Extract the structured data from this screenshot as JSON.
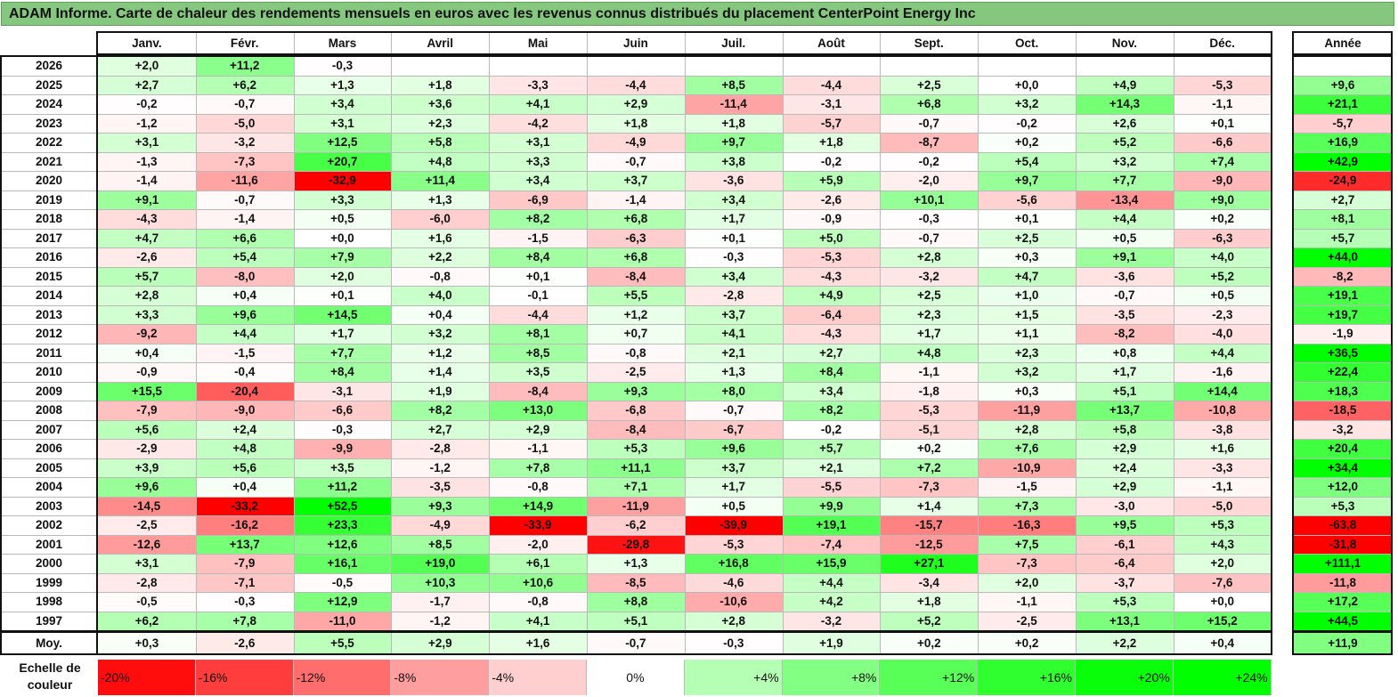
{
  "title": "ADAM Informe. Carte de chaleur des rendements mensuels en euros avec les revenus connus distribués du placement CenterPoint Energy Inc",
  "chart_data": {
    "type": "heatmap",
    "columns": [
      "Janv.",
      "Févr.",
      "Mars",
      "Avril",
      "Mai",
      "Juin",
      "Juil.",
      "Août",
      "Sept.",
      "Oct.",
      "Nov.",
      "Déc."
    ],
    "year_column_label": "Année",
    "rows": [
      {
        "label": "2026",
        "values": [
          "+2,0",
          "+11,2",
          "-0,3",
          "",
          "",
          "",
          "",
          "",
          "",
          "",
          "",
          ""
        ],
        "year": ""
      },
      {
        "label": "2025",
        "values": [
          "+2,7",
          "+6,2",
          "+1,3",
          "+1,8",
          "-3,3",
          "-4,4",
          "+8,5",
          "-4,4",
          "+2,5",
          "+0,0",
          "+4,9",
          "-5,3"
        ],
        "year": "+9,6"
      },
      {
        "label": "2024",
        "values": [
          "-0,2",
          "-0,7",
          "+3,4",
          "+3,6",
          "+4,1",
          "+2,9",
          "-11,4",
          "-3,1",
          "+6,8",
          "+3,2",
          "+14,3",
          "-1,1"
        ],
        "year": "+21,1"
      },
      {
        "label": "2023",
        "values": [
          "-1,2",
          "-5,0",
          "+3,1",
          "+2,3",
          "-4,2",
          "+1,8",
          "+1,8",
          "-5,7",
          "-0,7",
          "-0,2",
          "+2,6",
          "+0,1"
        ],
        "year": "-5,7"
      },
      {
        "label": "2022",
        "values": [
          "+3,1",
          "-3,2",
          "+12,5",
          "+5,8",
          "+3,1",
          "-4,9",
          "+9,7",
          "+1,8",
          "-8,7",
          "+0,2",
          "+5,2",
          "-6,6"
        ],
        "year": "+16,9"
      },
      {
        "label": "2021",
        "values": [
          "-1,3",
          "-7,3",
          "+20,7",
          "+4,8",
          "+3,3",
          "-0,7",
          "+3,8",
          "-0,2",
          "-0,2",
          "+5,4",
          "+3,2",
          "+7,4"
        ],
        "year": "+42,9"
      },
      {
        "label": "2020",
        "values": [
          "-1,4",
          "-11,6",
          "-32,9",
          "+11,4",
          "+3,4",
          "+3,7",
          "-3,6",
          "+5,9",
          "-2,0",
          "+9,7",
          "+7,7",
          "-9,0"
        ],
        "year": "-24,9"
      },
      {
        "label": "2019",
        "values": [
          "+9,1",
          "-0,7",
          "+3,3",
          "+1,3",
          "-6,9",
          "-1,4",
          "+3,4",
          "-2,6",
          "+10,1",
          "-5,6",
          "-13,4",
          "+9,0"
        ],
        "year": "+2,7"
      },
      {
        "label": "2018",
        "values": [
          "-4,3",
          "-1,4",
          "+0,5",
          "-6,0",
          "+8,2",
          "+6,8",
          "+1,7",
          "-0,9",
          "-0,3",
          "+0,1",
          "+4,4",
          "+0,2"
        ],
        "year": "+8,1"
      },
      {
        "label": "2017",
        "values": [
          "+4,7",
          "+6,6",
          "+0,0",
          "+1,6",
          "-1,5",
          "-6,3",
          "+0,1",
          "+5,0",
          "-0,7",
          "+2,5",
          "+0,5",
          "-6,3"
        ],
        "year": "+5,7"
      },
      {
        "label": "2016",
        "values": [
          "-2,6",
          "+5,4",
          "+7,9",
          "+2,2",
          "+8,4",
          "+6,8",
          "-0,3",
          "-5,3",
          "+2,8",
          "+0,3",
          "+9,1",
          "+4,0"
        ],
        "year": "+44,0"
      },
      {
        "label": "2015",
        "values": [
          "+5,7",
          "-8,0",
          "+2,0",
          "-0,8",
          "+0,1",
          "-8,4",
          "+3,4",
          "-4,3",
          "-3,2",
          "+4,7",
          "-3,6",
          "+5,2"
        ],
        "year": "-8,2"
      },
      {
        "label": "2014",
        "values": [
          "+2,8",
          "+0,4",
          "+0,1",
          "+4,0",
          "-0,1",
          "+5,5",
          "-2,8",
          "+4,9",
          "+2,5",
          "+1,0",
          "-0,7",
          "+0,5"
        ],
        "year": "+19,1"
      },
      {
        "label": "2013",
        "values": [
          "+3,3",
          "+9,6",
          "+14,5",
          "+0,4",
          "-4,4",
          "+1,2",
          "+3,7",
          "-6,4",
          "+2,3",
          "+1,5",
          "-3,5",
          "-2,3"
        ],
        "year": "+19,7"
      },
      {
        "label": "2012",
        "values": [
          "-9,2",
          "+4,4",
          "+1,7",
          "+3,2",
          "+8,1",
          "+0,7",
          "+4,1",
          "-4,3",
          "+1,7",
          "+1,1",
          "-8,2",
          "-4,0"
        ],
        "year": "-1,9"
      },
      {
        "label": "2011",
        "values": [
          "+0,4",
          "-1,5",
          "+7,7",
          "+1,2",
          "+8,5",
          "-0,8",
          "+2,1",
          "+2,7",
          "+4,8",
          "+2,3",
          "+0,8",
          "+4,4"
        ],
        "year": "+36,5"
      },
      {
        "label": "2010",
        "values": [
          "-0,9",
          "-0,4",
          "+8,4",
          "+1,4",
          "+3,5",
          "-2,5",
          "+1,3",
          "+8,4",
          "-1,1",
          "+3,2",
          "+1,7",
          "-1,6"
        ],
        "year": "+22,4"
      },
      {
        "label": "2009",
        "values": [
          "+15,5",
          "-20,4",
          "-3,1",
          "+1,9",
          "-8,4",
          "+9,3",
          "+8,0",
          "+3,4",
          "-1,8",
          "+0,3",
          "+5,1",
          "+14,4"
        ],
        "year": "+18,3"
      },
      {
        "label": "2008",
        "values": [
          "-7,9",
          "-9,0",
          "-6,6",
          "+8,2",
          "+13,0",
          "-6,8",
          "-0,7",
          "+8,2",
          "-5,3",
          "-11,9",
          "+13,7",
          "-10,8"
        ],
        "year": "-18,5"
      },
      {
        "label": "2007",
        "values": [
          "+5,6",
          "+2,4",
          "-0,3",
          "+2,7",
          "+2,9",
          "-8,4",
          "-6,7",
          "-0,2",
          "-5,1",
          "+2,8",
          "+5,8",
          "-3,8"
        ],
        "year": "-3,2"
      },
      {
        "label": "2006",
        "values": [
          "-2,9",
          "+4,8",
          "-9,9",
          "-2,8",
          "-1,1",
          "+5,3",
          "+9,6",
          "+5,7",
          "+0,2",
          "+7,6",
          "+2,9",
          "+1,6"
        ],
        "year": "+20,4"
      },
      {
        "label": "2005",
        "values": [
          "+3,9",
          "+5,6",
          "+3,5",
          "-1,2",
          "+7,8",
          "+11,1",
          "+3,7",
          "+2,1",
          "+7,2",
          "-10,9",
          "+2,4",
          "-3,3"
        ],
        "year": "+34,4"
      },
      {
        "label": "2004",
        "values": [
          "+9,6",
          "+0,4",
          "+11,2",
          "-3,5",
          "-0,8",
          "+7,1",
          "+1,7",
          "-5,5",
          "-7,3",
          "-1,5",
          "+2,9",
          "-1,1"
        ],
        "year": "+12,0"
      },
      {
        "label": "2003",
        "values": [
          "-14,5",
          "-33,2",
          "+52,5",
          "+9,3",
          "+14,9",
          "-11,9",
          "+0,5",
          "+9,9",
          "+1,4",
          "+7,3",
          "-3,0",
          "-5,0"
        ],
        "year": "+5,3"
      },
      {
        "label": "2002",
        "values": [
          "-2,5",
          "-16,2",
          "+23,3",
          "-4,9",
          "-33,9",
          "-6,2",
          "-39,9",
          "+19,1",
          "-15,7",
          "-16,3",
          "+9,5",
          "+5,3"
        ],
        "year": "-63,8"
      },
      {
        "label": "2001",
        "values": [
          "-12,6",
          "+13,7",
          "+12,6",
          "+8,5",
          "-2,0",
          "-29,8",
          "-5,3",
          "-7,4",
          "-12,5",
          "+7,5",
          "-6,1",
          "+4,3"
        ],
        "year": "-31,8"
      },
      {
        "label": "2000",
        "values": [
          "+3,1",
          "-7,9",
          "+16,1",
          "+19,0",
          "+6,1",
          "+1,3",
          "+16,8",
          "+15,9",
          "+27,1",
          "-7,3",
          "-6,4",
          "+2,0"
        ],
        "year": "+111,1"
      },
      {
        "label": "1999",
        "values": [
          "-2,8",
          "-7,1",
          "-0,5",
          "+10,3",
          "+10,6",
          "-8,5",
          "-4,6",
          "+4,4",
          "-3,4",
          "+2,0",
          "-3,7",
          "-7,6"
        ],
        "year": "-11,8"
      },
      {
        "label": "1998",
        "values": [
          "-0,5",
          "-0,3",
          "+12,9",
          "-1,7",
          "-0,8",
          "+8,8",
          "-10,6",
          "+4,2",
          "+1,8",
          "-1,1",
          "+5,3",
          "+0,0"
        ],
        "year": "+17,2"
      },
      {
        "label": "1997",
        "values": [
          "+6,2",
          "+7,8",
          "-11,0",
          "-1,2",
          "+4,1",
          "+5,1",
          "+2,8",
          "-3,2",
          "+5,2",
          "-2,5",
          "+13,1",
          "+15,2"
        ],
        "year": "+44,5"
      }
    ],
    "average_row": {
      "label": "Moy.",
      "values": [
        "+0,3",
        "-2,6",
        "+5,5",
        "+2,9",
        "+1,6",
        "-0,7",
        "-0,3",
        "+1,9",
        "+0,2",
        "+0,2",
        "+2,2",
        "+0,4"
      ],
      "year": "+11,9"
    },
    "color_scale": {
      "label": "Echelle de couleur",
      "stops": [
        "-20%",
        "-16%",
        "-12%",
        "-8%",
        "-4%",
        "0%",
        "+4%",
        "+8%",
        "+12%",
        "+16%",
        "+20%",
        "+24%"
      ],
      "stop_values": [
        -20,
        -16,
        -12,
        -8,
        -4,
        0,
        4,
        8,
        12,
        16,
        20,
        24
      ],
      "negative_color": "#ff0000",
      "neutral_color": "#ffffff",
      "positive_color": "#00ff00"
    }
  }
}
